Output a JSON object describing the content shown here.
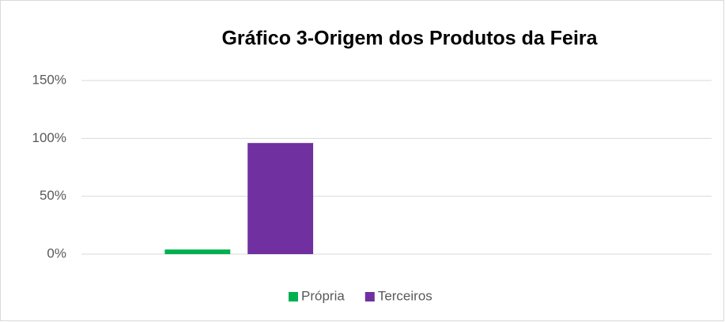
{
  "chart_data": {
    "type": "bar",
    "title": "Gráfico 3-Origem dos Produtos da Feira",
    "categories": [
      null,
      null
    ],
    "series": [
      {
        "name": "Própria",
        "color": "#00b050",
        "values": [
          4,
          null
        ]
      },
      {
        "name": "Terceiros",
        "color": "#7030a0",
        "values": [
          96,
          null
        ]
      }
    ],
    "ylim": [
      0,
      150
    ],
    "yticks": [
      {
        "value": 0,
        "label": "0%"
      },
      {
        "value": 50,
        "label": "50%"
      },
      {
        "value": 100,
        "label": "100%"
      },
      {
        "value": 150,
        "label": "150%"
      }
    ],
    "grid": true,
    "legend": "bottom"
  }
}
